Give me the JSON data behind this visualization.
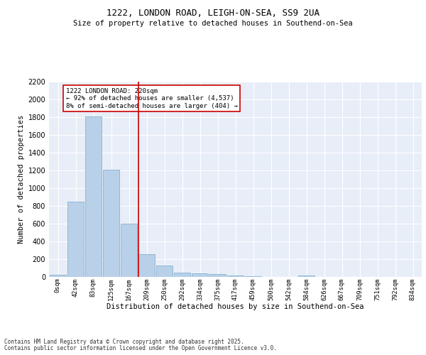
{
  "title_line1": "1222, LONDON ROAD, LEIGH-ON-SEA, SS9 2UA",
  "title_line2": "Size of property relative to detached houses in Southend-on-Sea",
  "xlabel": "Distribution of detached houses by size in Southend-on-Sea",
  "ylabel": "Number of detached properties",
  "bar_color": "#b8d0e8",
  "bar_edge_color": "#7aaacb",
  "background_color": "#e8eef8",
  "grid_color": "#ffffff",
  "categories": [
    "0sqm",
    "42sqm",
    "83sqm",
    "125sqm",
    "167sqm",
    "209sqm",
    "250sqm",
    "292sqm",
    "334sqm",
    "375sqm",
    "417sqm",
    "459sqm",
    "500sqm",
    "542sqm",
    "584sqm",
    "626sqm",
    "667sqm",
    "709sqm",
    "751sqm",
    "792sqm",
    "834sqm"
  ],
  "values": [
    25,
    845,
    1810,
    1210,
    600,
    255,
    130,
    50,
    42,
    30,
    20,
    5,
    0,
    0,
    15,
    0,
    0,
    0,
    0,
    0,
    0
  ],
  "vline_index": 5,
  "vline_color": "#cc0000",
  "annotation_line1": "1222 LONDON ROAD: 220sqm",
  "annotation_line2": "← 92% of detached houses are smaller (4,537)",
  "annotation_line3": "8% of semi-detached houses are larger (404) →",
  "annotation_box_color": "#ffffff",
  "annotation_box_edge_color": "#cc0000",
  "ylim_max": 2200,
  "yticks": [
    0,
    200,
    400,
    600,
    800,
    1000,
    1200,
    1400,
    1600,
    1800,
    2000,
    2200
  ],
  "footnote1": "Contains HM Land Registry data © Crown copyright and database right 2025.",
  "footnote2": "Contains public sector information licensed under the Open Government Licence v3.0.",
  "fig_bg_color": "#ffffff"
}
